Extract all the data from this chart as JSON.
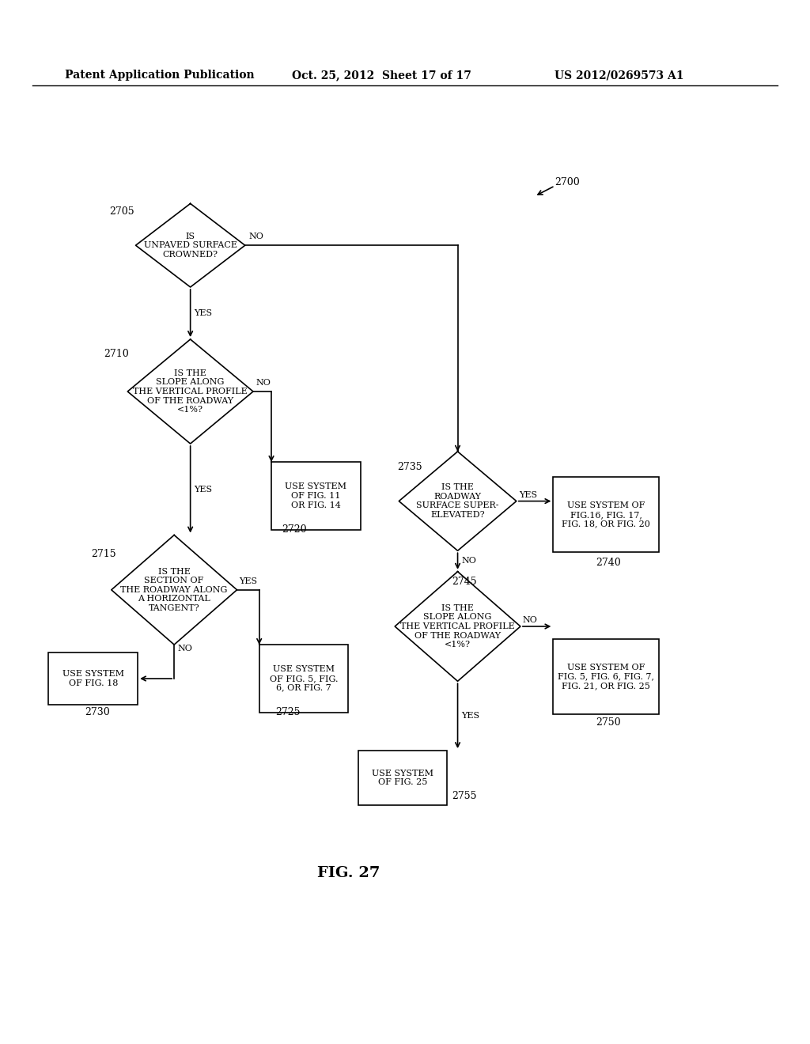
{
  "bg_color": "#ffffff",
  "header_left": "Patent Application Publication",
  "header_mid": "Oct. 25, 2012  Sheet 17 of 17",
  "header_right": "US 2012/0269573 A1",
  "fig_label": "FIG. 27"
}
